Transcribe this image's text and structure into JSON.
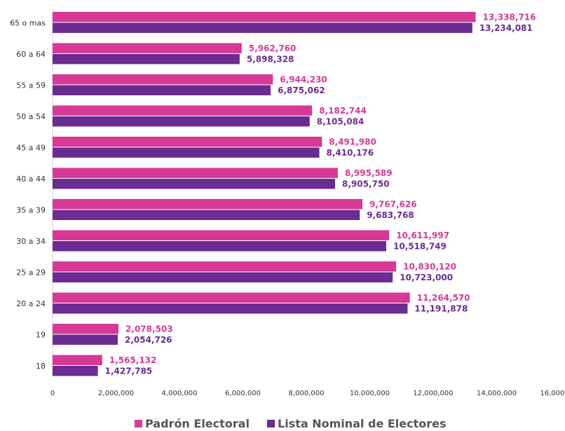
{
  "chart_data": {
    "type": "bar",
    "orientation": "horizontal",
    "categories": [
      "65 o mas",
      "60 a 64",
      "55 a 59",
      "50 a 54",
      "45 a 49",
      "40 a 44",
      "35 a 39",
      "30 a 34",
      "25 a 29",
      "20 a 24",
      "19",
      "18"
    ],
    "series": [
      {
        "name": "Padrón Electoral",
        "color": "#d63a96",
        "values": [
          13338716,
          5962760,
          6944230,
          8182744,
          8491980,
          8995589,
          9767626,
          10611997,
          10830120,
          11264570,
          2078503,
          1565132
        ],
        "labels": [
          "13,338,716",
          "5,962,760",
          "6,944,230",
          "8,182,744",
          "8,491,980",
          "8,995,589",
          "9,767,626",
          "10,611,997",
          "10,830,120",
          "11,264,570",
          "2,078,503",
          "1,565,132"
        ]
      },
      {
        "name": "Lista Nominal de Electores",
        "color": "#6b2c91",
        "values": [
          13234081,
          5898328,
          6875062,
          8105084,
          8410176,
          8905750,
          9683768,
          10518749,
          10723000,
          11191878,
          2054726,
          1427785
        ],
        "labels": [
          "13,234,081",
          "5,898,328",
          "6,875,062",
          "8,105,084",
          "8,410,176",
          "8,905,750",
          "9,683,768",
          "10,518,749",
          "10,723,000",
          "11,191,878",
          "2,054,726",
          "1,427,785"
        ]
      }
    ],
    "x_ticks": [
      "0",
      "2,000,000",
      "4,000,000",
      "6,000,000",
      "8,000,000",
      "10,000,000",
      "12,000,000",
      "14,000,000",
      "16,000,000"
    ],
    "xlim": [
      0,
      16000000
    ],
    "grid": false,
    "legend_position": "bottom"
  }
}
